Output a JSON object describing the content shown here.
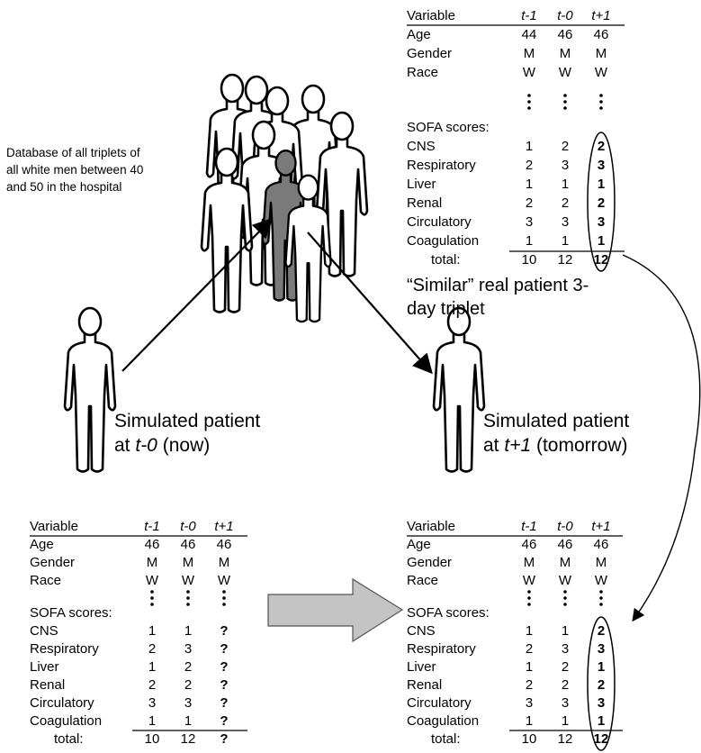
{
  "database_label": [
    "Database of all triplets of",
    "all white men between 40",
    "and 50 in the hospital"
  ],
  "similar_label": [
    "“Similar” real patient 3-",
    "day triplet"
  ],
  "current_patient": {
    "title": "Simulated patient",
    "prefix": "at",
    "time": "t-0",
    "suffix": "(now)"
  },
  "next_patient": {
    "title": "Simulated patient",
    "prefix": "at",
    "time": "t+1",
    "suffix": "(tomorrow)"
  },
  "tables": {
    "similar": {
      "header": [
        "Variable",
        "t-1",
        "t-0",
        "t+1"
      ],
      "rows": [
        [
          "Age",
          44,
          46,
          46
        ],
        [
          "Gender",
          "M",
          "M",
          "M"
        ],
        [
          "Race",
          "W",
          "W",
          "W"
        ]
      ],
      "section": "SOFA scores:",
      "sofa": [
        [
          "CNS",
          1,
          2,
          2
        ],
        [
          "Respiratory",
          2,
          3,
          3
        ],
        [
          "Liver",
          1,
          1,
          1
        ],
        [
          "Renal",
          2,
          2,
          2
        ],
        [
          "Circulatory",
          3,
          3,
          3
        ],
        [
          "Coagulation",
          1,
          1,
          1
        ]
      ],
      "total": [
        "total:",
        10,
        12,
        12
      ]
    },
    "current": {
      "header": [
        "Variable",
        "t-1",
        "t-0",
        "t+1"
      ],
      "rows": [
        [
          "Age",
          46,
          46,
          46
        ],
        [
          "Gender",
          "M",
          "M",
          "M"
        ],
        [
          "Race",
          "W",
          "W",
          "W"
        ]
      ],
      "section": "SOFA scores:",
      "sofa": [
        [
          "CNS",
          1,
          1,
          "?"
        ],
        [
          "Respiratory",
          2,
          3,
          "?"
        ],
        [
          "Liver",
          1,
          2,
          "?"
        ],
        [
          "Renal",
          2,
          2,
          "?"
        ],
        [
          "Circulatory",
          3,
          3,
          "?"
        ],
        [
          "Coagulation",
          1,
          1,
          "?"
        ]
      ],
      "total": [
        "total:",
        10,
        12,
        "?"
      ]
    },
    "next": {
      "header": [
        "Variable",
        "t-1",
        "t-0",
        "t+1"
      ],
      "rows": [
        [
          "Age",
          46,
          46,
          46
        ],
        [
          "Gender",
          "M",
          "M",
          "M"
        ],
        [
          "Race",
          "W",
          "W",
          "W"
        ]
      ],
      "section": "SOFA scores:",
      "sofa": [
        [
          "CNS",
          1,
          1,
          2
        ],
        [
          "Respiratory",
          2,
          3,
          3
        ],
        [
          "Liver",
          1,
          2,
          1
        ],
        [
          "Renal",
          2,
          2,
          2
        ],
        [
          "Circulatory",
          3,
          3,
          3
        ],
        [
          "Coagulation",
          1,
          1,
          1
        ]
      ],
      "total": [
        "total:",
        10,
        12,
        12
      ]
    }
  }
}
